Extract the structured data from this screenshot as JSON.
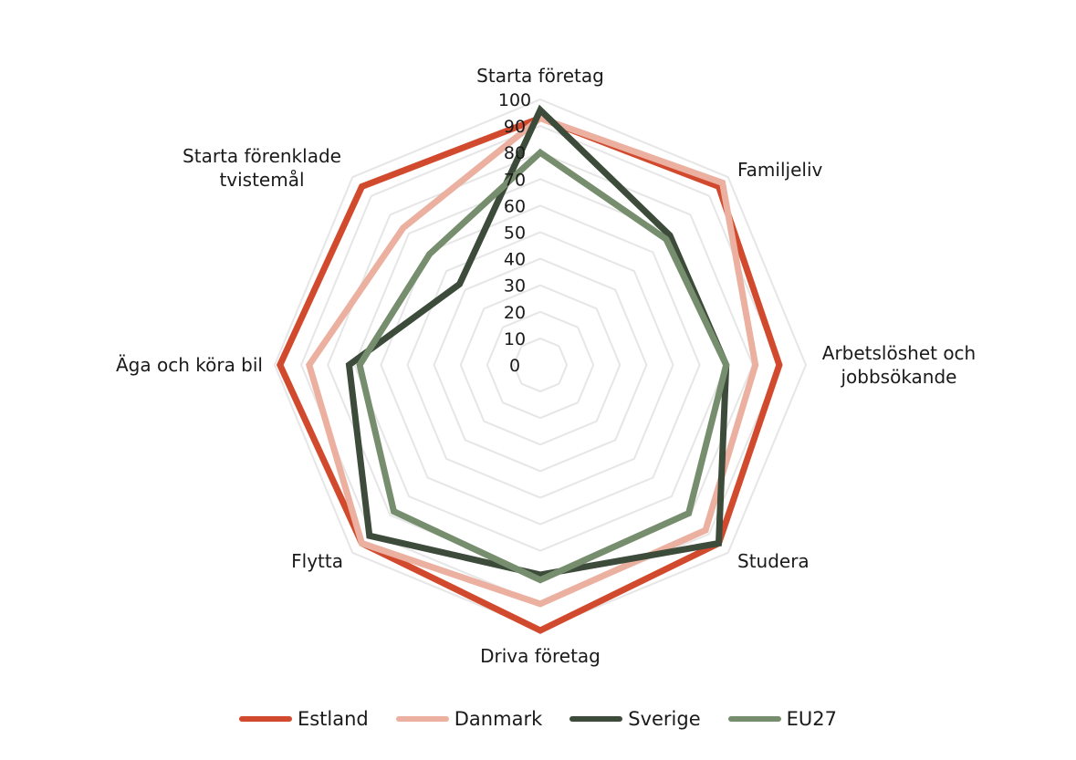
{
  "chart_data": {
    "type": "radar",
    "title": "",
    "axes": [
      [
        "Starta företag"
      ],
      [
        "Familjeliv"
      ],
      [
        "Arbetslöshet och",
        "jobbsökande"
      ],
      [
        "Studera"
      ],
      [
        "Driva företag"
      ],
      [
        "Flytta"
      ],
      [
        "Äga och köra bil"
      ],
      [
        "Starta förenklade",
        "tvistemål"
      ]
    ],
    "scale": {
      "min": 0,
      "max": 100,
      "step": 10,
      "tick_labels": [
        "0",
        "10",
        "20",
        "30",
        "40",
        "50",
        "60",
        "70",
        "80",
        "90",
        "100"
      ]
    },
    "grid": true,
    "legend_position": "bottom-center",
    "series": [
      {
        "name": "Estland",
        "color": "#d24a2e",
        "values": [
          93,
          95,
          90,
          95,
          100,
          95,
          98,
          95
        ]
      },
      {
        "name": "Danmark",
        "color": "#ebb09f",
        "values": [
          93,
          97,
          81,
          88,
          90,
          95,
          87,
          73
        ]
      },
      {
        "name": "Sverige",
        "color": "#3d4b3b",
        "values": [
          96,
          69,
          70,
          95,
          79,
          91,
          72,
          43
        ]
      },
      {
        "name": "EU27",
        "color": "#768e6d",
        "values": [
          80,
          67,
          70,
          79,
          81,
          78,
          68,
          59
        ]
      }
    ],
    "grid_color": "#e6e6e6"
  }
}
